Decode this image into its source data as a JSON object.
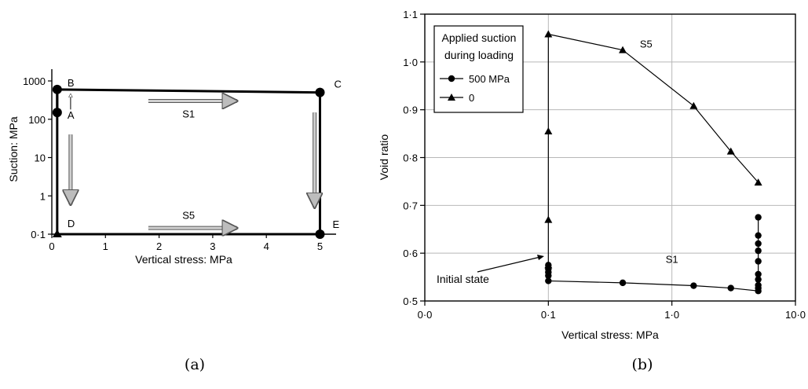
{
  "chart_data": [
    {
      "type": "line",
      "caption": "(a)",
      "xlabel": "Vertical stress: MPa",
      "ylabel": "Suction: MPa",
      "x_ticks": [
        "0",
        "1",
        "2",
        "3",
        "4",
        "5"
      ],
      "y_ticks": [
        "0·1",
        "1",
        "10",
        "100",
        "1000"
      ],
      "xlim": [
        0,
        5.3
      ],
      "ylim": [
        0.1,
        1000
      ],
      "y_scale": "log",
      "grid": false,
      "points": [
        {
          "name": "A",
          "x": 0.1,
          "y": 150
        },
        {
          "name": "B",
          "x": 0.1,
          "y": 600
        },
        {
          "name": "C",
          "x": 5,
          "y": 500
        },
        {
          "name": "D",
          "x": 0.1,
          "y": 0.1
        },
        {
          "name": "E",
          "x": 5,
          "y": 0.1
        }
      ],
      "paths": [
        {
          "name": "S1",
          "label": "S1"
        },
        {
          "name": "S5",
          "label": "S5"
        }
      ]
    },
    {
      "type": "line",
      "caption": "(b)",
      "xlabel": "Vertical stress: MPa",
      "ylabel": "Void ratio",
      "x_ticks": [
        "0·0",
        "0·1",
        "1·0",
        "10·0"
      ],
      "y_ticks": [
        "0·5",
        "0·6",
        "0·7",
        "0·8",
        "0·9",
        "1·0",
        "1·1"
      ],
      "x_scale": "log",
      "xlim": [
        0.01,
        10
      ],
      "ylim": [
        0.5,
        1.1
      ],
      "grid": true,
      "legend": {
        "title_line1": "Applied suction",
        "title_line2": "during loading",
        "placement": "top-left"
      },
      "series": [
        {
          "name": "500 MPa",
          "label": "S1",
          "marker": "circle",
          "x": [
            0.1,
            0.1,
            0.1,
            0.1,
            0.1,
            0.4,
            1.5,
            3,
            5,
            5,
            5,
            5,
            5,
            5,
            5,
            5,
            5,
            5
          ],
          "y": [
            0.575,
            0.567,
            0.56,
            0.553,
            0.542,
            0.538,
            0.532,
            0.527,
            0.521,
            0.527,
            0.533,
            0.545,
            0.556,
            0.583,
            0.605,
            0.62,
            0.637,
            0.675
          ]
        },
        {
          "name": "0",
          "label": "S5",
          "marker": "triangle",
          "x": [
            0.1,
            0.1,
            0.1,
            0.1,
            0.4,
            1.5,
            3,
            5
          ],
          "y": [
            0.575,
            0.67,
            0.855,
            1.058,
            1.025,
            0.908,
            0.813,
            0.748
          ]
        }
      ],
      "annotation": "Initial state"
    }
  ]
}
